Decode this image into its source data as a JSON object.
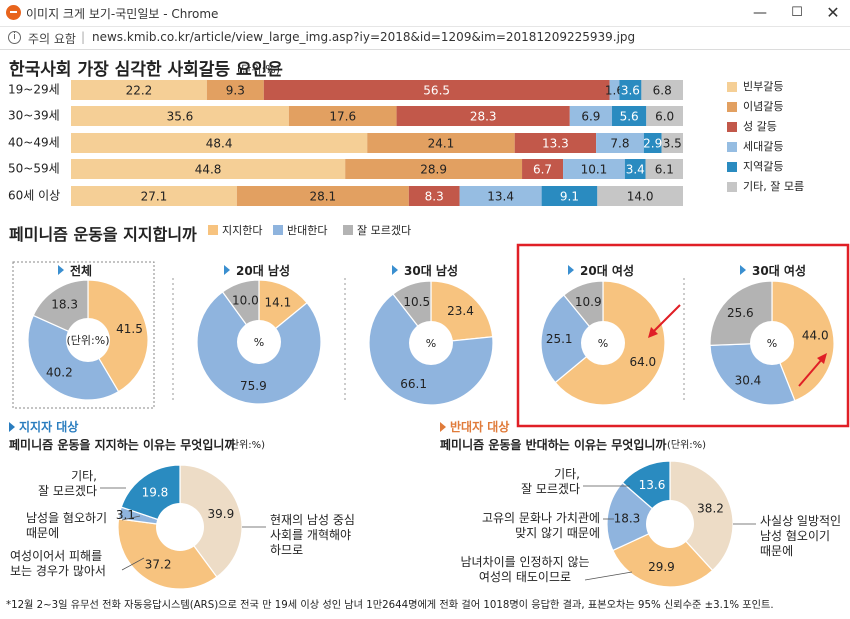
{
  "window": {
    "title": "이미지 크게 보기-국민일보 - Chrome",
    "controls": {
      "minimize": "—",
      "maximize": "☐",
      "close": "✕"
    }
  },
  "address": {
    "security_label": "주의 요함",
    "url": "news.kmib.co.kr/article/view_large_img.asp?iy=2018&id=1209&im=20181209225939.jpg"
  },
  "colors": {
    "poverty": "#f5cf96",
    "ideology": "#e2a061",
    "gender": "#c2584a",
    "generation": "#96bde2",
    "region": "#2a8bc0",
    "other": "#c6c6c6",
    "support": "#f7c37f",
    "oppose": "#8fb4de",
    "unknown": "#b3b3b3",
    "beige": "#eddcc6",
    "highlight": "#e01f26"
  },
  "chart_data": [
    {
      "type": "bar",
      "orientation": "horizontal",
      "stacked": true,
      "title": "한국사회 가장 심각한 사회갈등 요인은",
      "unit": "(단위:%)",
      "categories": [
        "19~29세",
        "30~39세",
        "40~49세",
        "50~59세",
        "60세 이상"
      ],
      "series": [
        {
          "name": "빈부갈등",
          "values": [
            22.2,
            35.6,
            48.4,
            44.8,
            27.1
          ]
        },
        {
          "name": "이념갈등",
          "values": [
            9.3,
            17.6,
            24.1,
            28.9,
            28.1
          ]
        },
        {
          "name": "성 갈등",
          "values": [
            56.5,
            28.3,
            13.3,
            6.7,
            8.3
          ]
        },
        {
          "name": "세대갈등",
          "values": [
            1.6,
            6.9,
            7.8,
            10.1,
            13.4
          ]
        },
        {
          "name": "지역갈등",
          "values": [
            3.6,
            5.6,
            2.9,
            3.4,
            9.1
          ]
        },
        {
          "name": "기타, 잘 모름",
          "values": [
            6.8,
            6.0,
            3.5,
            6.1,
            14.0
          ]
        }
      ],
      "legend_position": "right"
    },
    {
      "type": "pie",
      "variant": "donut",
      "title": "페미니즘 운동을 지지합니까",
      "legend": [
        "지지한다",
        "반대한다",
        "잘 모르겠다"
      ],
      "unit_center_main": "(단위:%)",
      "unit_center": "%",
      "charts": [
        {
          "label": "전체",
          "values": [
            41.5,
            40.2,
            18.3
          ]
        },
        {
          "label": "20대 남성",
          "values": [
            14.1,
            75.9,
            10.0
          ]
        },
        {
          "label": "30대 남성",
          "values": [
            23.4,
            66.1,
            10.5
          ]
        },
        {
          "label": "20대 여성",
          "values": [
            64.0,
            25.1,
            10.9
          ]
        },
        {
          "label": "30대 여성",
          "values": [
            44.0,
            30.4,
            25.6
          ]
        }
      ]
    },
    {
      "type": "pie",
      "variant": "donut",
      "heading": "지지자 대상",
      "title": "페미니즘 운동을 지지하는 이유는 무엇입니까",
      "unit": "(단위:%)",
      "slices": [
        {
          "label": "현재의 남성 중심 사회를 개혁해야 하므로",
          "lines": [
            "현재의 남성 중심",
            "사회를 개혁해야",
            "하므로"
          ],
          "value": 39.9
        },
        {
          "label": "여성이어서 피해를 보는 경우가 많아서",
          "lines": [
            "여성이어서 피해를",
            "보는 경우가 많아서"
          ],
          "value": 37.2
        },
        {
          "label": "남성을 혐오하기 때문에",
          "lines": [
            "남성을 혐오하기",
            "때문에"
          ],
          "value": 3.1
        },
        {
          "label": "기타, 잘 모르겠다",
          "lines": [
            "기타,",
            "잘 모르겠다"
          ],
          "value": 19.8
        }
      ]
    },
    {
      "type": "pie",
      "variant": "donut",
      "heading": "반대자 대상",
      "title": "페미니즘 운동을 반대하는 이유는 무엇입니까",
      "unit": "(단위:%)",
      "slices": [
        {
          "label": "사실상 일방적인 남성 혐오이기 때문에",
          "lines": [
            "사실상 일방적인",
            "남성 혐오이기",
            "때문에"
          ],
          "value": 38.2
        },
        {
          "label": "남녀차이를 인정하지 않는 여성의 태도이므로",
          "lines": [
            "남녀차이를 인정하지 않는",
            "여성의 태도이므로"
          ],
          "value": 29.9
        },
        {
          "label": "고유의 문화나 가치관에 맞지 않기 때문에",
          "lines": [
            "고유의 문화나 가치관에",
            "맞지 않기 때문에"
          ],
          "value": 18.3
        },
        {
          "label": "기타, 잘 모르겠다",
          "lines": [
            "기타,",
            "잘 모르겠다"
          ],
          "value": 13.6
        }
      ]
    }
  ],
  "footnote": "*12월 2~3일 유무선 전화 자동응답시스템(ARS)으로 전국 만 19세 이상 성인 남녀 1만2644명에게 전화 걸어 1018명이 응답한 결과, 표본오차는 95% 신뢰수준 ±3.1% 포인트."
}
